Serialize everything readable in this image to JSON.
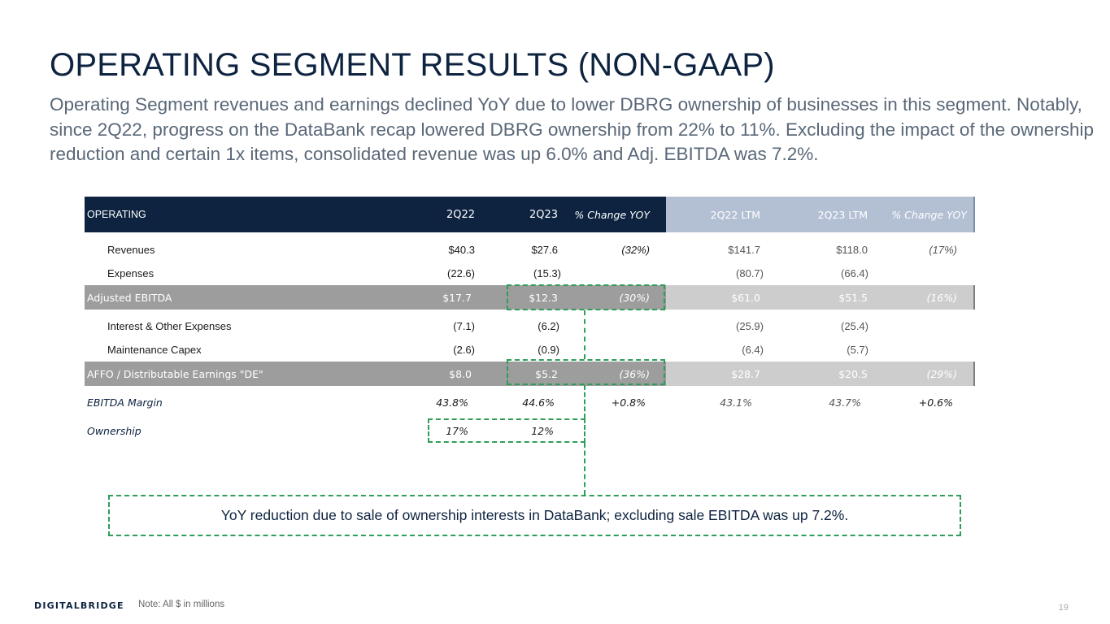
{
  "title": "OPERATING SEGMENT RESULTS (NON-GAAP)",
  "subtitle": "Operating Segment revenues and earnings declined YoY due to lower DBRG ownership of businesses in this segment. Notably, since 2Q22, progress on the DataBank recap lowered DBRG ownership from 22% to 11%.  Excluding the impact of the ownership reduction and certain 1x items, consolidated revenue was up 6.0% and Adj. EBITDA was 7.2%.",
  "table": {
    "headers": [
      "OPERATING",
      "2Q22",
      "2Q23",
      "% Change YOY",
      "2Q22 LTM",
      "2Q23 LTM",
      "% Change YOY"
    ],
    "revenues": {
      "label": "Revenues",
      "q22": "$40.3",
      "q23": "$27.6",
      "chg": "(32%)",
      "ltm22": "$141.7",
      "ltm23": "$118.0",
      "ltmchg": "(17%)"
    },
    "expenses": {
      "label": "Expenses",
      "q22": "(22.6)",
      "q23": "(15.3)",
      "chg": "",
      "ltm22": "(80.7)",
      "ltm23": "(66.4)",
      "ltmchg": ""
    },
    "adj_ebitda": {
      "label": "Adjusted EBITDA",
      "q22": "$17.7",
      "q23": "$12.3",
      "chg": "(30%)",
      "ltm22": "$61.0",
      "ltm23": "$51.5",
      "ltmchg": "(16%)"
    },
    "interest": {
      "label": "Interest & Other Expenses",
      "q22": "(7.1)",
      "q23": "(6.2)",
      "chg": "",
      "ltm22": "(25.9)",
      "ltm23": "(25.4)",
      "ltmchg": ""
    },
    "capex": {
      "label": "Maintenance Capex",
      "q22": "(2.6)",
      "q23": "(0.9)",
      "chg": "",
      "ltm22": "(6.4)",
      "ltm23": "(5.7)",
      "ltmchg": ""
    },
    "affo": {
      "label": "AFFO / Distributable Earnings \"DE\"",
      "q22": "$8.0",
      "q23": "$5.2",
      "chg": "(36%)",
      "ltm22": "$28.7",
      "ltm23": "$20.5",
      "ltmchg": "(29%)"
    },
    "margin": {
      "label": "EBITDA Margin",
      "q22": "43.8%",
      "q23": "44.6%",
      "chg": "+0.8%",
      "ltm22": "43.1%",
      "ltm23": "43.7%",
      "ltmchg": "+0.6%"
    },
    "ownership": {
      "label": "Ownership",
      "q22": "17%",
      "q23": "12%"
    }
  },
  "callout": "YoY reduction due to sale of ownership interests in DataBank; excluding sale EBITDA was up 7.2%.",
  "footer": {
    "logo": "DIGITALBRIDGE",
    "note": "Note: All $ in millions",
    "page": "19"
  },
  "colors": {
    "navy": "#0d2340",
    "header_light": "#b3c0d4",
    "shade_dark": "#9d9d9d",
    "shade_light": "#cdcdcd",
    "dash_green": "#2e9e5a"
  }
}
